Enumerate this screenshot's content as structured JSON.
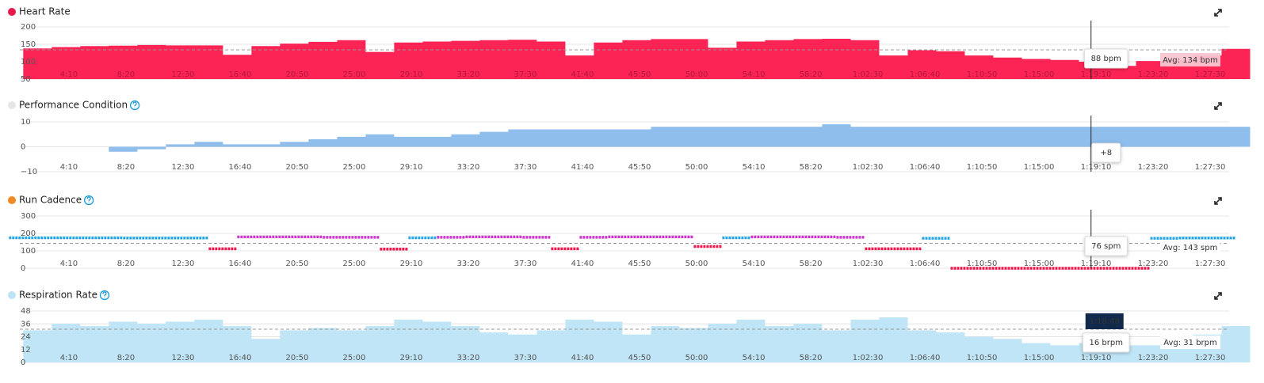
{
  "chart_data": [
    {
      "type": "area",
      "title": "Heart Rate",
      "legend_color": "#e8194e",
      "color": "#fb2454",
      "x": [
        50,
        175,
        300,
        425,
        550,
        675,
        800,
        925,
        1050,
        1175,
        1300,
        1425,
        1550,
        1675,
        1800,
        1925,
        2050,
        2175,
        2300,
        2425,
        2550,
        2675,
        2800,
        2925,
        3050,
        3175,
        3300,
        3425,
        3550,
        3675,
        3800,
        3925,
        4050,
        4175,
        4300,
        4425,
        4550,
        4675,
        4800,
        4925,
        5050,
        5175,
        5300
      ],
      "values": [
        138,
        142,
        145,
        146,
        148,
        147,
        147,
        120,
        145,
        152,
        157,
        162,
        128,
        155,
        158,
        160,
        162,
        163,
        158,
        118,
        155,
        162,
        165,
        165,
        140,
        158,
        162,
        165,
        166,
        162,
        118,
        133,
        130,
        118,
        112,
        108,
        105,
        100,
        88,
        102,
        105,
        118,
        137
      ],
      "xlim": [
        35,
        5333
      ],
      "xticks": [
        {
          "value": 250,
          "label": "4:10"
        },
        {
          "value": 500,
          "label": "8:20"
        },
        {
          "value": 750,
          "label": "12:30"
        },
        {
          "value": 1000,
          "label": "16:40"
        },
        {
          "value": 1250,
          "label": "20:50"
        },
        {
          "value": 1500,
          "label": "25:00"
        },
        {
          "value": 1750,
          "label": "29:10"
        },
        {
          "value": 2000,
          "label": "33:20"
        },
        {
          "value": 2250,
          "label": "37:30"
        },
        {
          "value": 2500,
          "label": "41:40"
        },
        {
          "value": 2750,
          "label": "45:50"
        },
        {
          "value": 3000,
          "label": "50:00"
        },
        {
          "value": 3250,
          "label": "54:10"
        },
        {
          "value": 3500,
          "label": "58:20"
        },
        {
          "value": 3750,
          "label": "1:02:30"
        },
        {
          "value": 4000,
          "label": "1:06:40"
        },
        {
          "value": 4250,
          "label": "1:10:50"
        },
        {
          "value": 4500,
          "label": "1:15:00"
        },
        {
          "value": 4750,
          "label": "1:19:10"
        },
        {
          "value": 5000,
          "label": "1:23:20"
        },
        {
          "value": 5250,
          "label": "1:27:30"
        }
      ],
      "ylim": [
        50,
        200
      ],
      "yticks": [
        50,
        100,
        150,
        200
      ],
      "avg": {
        "value": 134,
        "label": "Avg: 134 bpm"
      },
      "tooltip": {
        "value": 88,
        "label": "88 bpm"
      }
    },
    {
      "type": "area",
      "title": "Performance Condition",
      "legend_color": "#e6e6e6",
      "color": "#8fbdec",
      "x": [
        50,
        175,
        300,
        425,
        550,
        675,
        800,
        925,
        1050,
        1175,
        1300,
        1425,
        1550,
        1675,
        1800,
        1925,
        2050,
        2175,
        2300,
        2425,
        2550,
        2675,
        2800,
        2925,
        3050,
        3175,
        3300,
        3425,
        3550,
        3675,
        3800,
        3925,
        4050,
        4175,
        4300,
        4425,
        4550,
        4675,
        4800,
        4925,
        5050,
        5175,
        5300
      ],
      "values": [
        null,
        null,
        null,
        -2,
        -1,
        1,
        2,
        1,
        1,
        2,
        3,
        4,
        5,
        4,
        4,
        5,
        6,
        7,
        7,
        7,
        7,
        7,
        8,
        8,
        8,
        8,
        8,
        8,
        9,
        8,
        8,
        8,
        8,
        8,
        8,
        8,
        8,
        8,
        8,
        8,
        8,
        8,
        8
      ],
      "xlim": [
        35,
        5333
      ],
      "xticks": [
        {
          "value": 250,
          "label": "4:10"
        },
        {
          "value": 500,
          "label": "8:20"
        },
        {
          "value": 750,
          "label": "12:30"
        },
        {
          "value": 1000,
          "label": "16:40"
        },
        {
          "value": 1250,
          "label": "20:50"
        },
        {
          "value": 1500,
          "label": "25:00"
        },
        {
          "value": 1750,
          "label": "29:10"
        },
        {
          "value": 2000,
          "label": "33:20"
        },
        {
          "value": 2250,
          "label": "37:30"
        },
        {
          "value": 2500,
          "label": "41:40"
        },
        {
          "value": 2750,
          "label": "45:50"
        },
        {
          "value": 3000,
          "label": "50:00"
        },
        {
          "value": 3250,
          "label": "54:10"
        },
        {
          "value": 3500,
          "label": "58:20"
        },
        {
          "value": 3750,
          "label": "1:02:30"
        },
        {
          "value": 4000,
          "label": "1:06:40"
        },
        {
          "value": 4250,
          "label": "1:10:50"
        },
        {
          "value": 4500,
          "label": "1:15:00"
        },
        {
          "value": 4750,
          "label": "1:19:10"
        },
        {
          "value": 5000,
          "label": "1:23:20"
        },
        {
          "value": 5250,
          "label": "1:27:30"
        }
      ],
      "ylim": [
        -10,
        10
      ],
      "yticks": [
        {
          "value": -10,
          "label": "−10"
        },
        0,
        10
      ],
      "tooltip": {
        "value": 8,
        "label": "+8"
      }
    },
    {
      "type": "scatter",
      "title": "Run Cadence",
      "legend_color": "#f08a24",
      "x": [
        50,
        175,
        300,
        425,
        550,
        675,
        800,
        925,
        1050,
        1175,
        1300,
        1425,
        1550,
        1675,
        1800,
        1925,
        2050,
        2175,
        2300,
        2425,
        2550,
        2675,
        2800,
        2925,
        3050,
        3175,
        3300,
        3425,
        3550,
        3675,
        3800,
        3925,
        4050,
        4175,
        4300,
        4425,
        4550,
        4675,
        4800,
        4925,
        5050,
        5175,
        5300
      ],
      "values": [
        175,
        175,
        175,
        175,
        174,
        174,
        174,
        112,
        180,
        180,
        180,
        178,
        178,
        110,
        175,
        178,
        180,
        180,
        178,
        112,
        178,
        180,
        180,
        180,
        125,
        175,
        180,
        180,
        180,
        178,
        112,
        112,
        172,
        0,
        0,
        0,
        0,
        0,
        0,
        0,
        172,
        174,
        174
      ],
      "point_colors": [
        "#2ba6e0",
        "#2ba6e0",
        "#2ba6e0",
        "#2ba6e0",
        "#2ba6e0",
        "#2ba6e0",
        "#2ba6e0",
        "#e8194e",
        "#c839c8",
        "#c839c8",
        "#c839c8",
        "#c839c8",
        "#c839c8",
        "#e8194e",
        "#2ba6e0",
        "#c839c8",
        "#c839c8",
        "#c839c8",
        "#c839c8",
        "#e8194e",
        "#c839c8",
        "#c839c8",
        "#c839c8",
        "#c839c8",
        "#e8194e",
        "#2ba6e0",
        "#c839c8",
        "#c839c8",
        "#c839c8",
        "#c839c8",
        "#e8194e",
        "#e8194e",
        "#2ba6e0",
        "#e8194e",
        "#e8194e",
        "#e8194e",
        "#e8194e",
        "#e8194e",
        "#e8194e",
        "#e8194e",
        "#2ba6e0",
        "#2ba6e0",
        "#2ba6e0"
      ],
      "xlim": [
        35,
        5333
      ],
      "xticks": [
        {
          "value": 250,
          "label": "4:10"
        },
        {
          "value": 500,
          "label": "8:20"
        },
        {
          "value": 750,
          "label": "12:30"
        },
        {
          "value": 1000,
          "label": "16:40"
        },
        {
          "value": 1250,
          "label": "20:50"
        },
        {
          "value": 1500,
          "label": "25:00"
        },
        {
          "value": 1750,
          "label": "29:10"
        },
        {
          "value": 2000,
          "label": "33:20"
        },
        {
          "value": 2250,
          "label": "37:30"
        },
        {
          "value": 2500,
          "label": "41:40"
        },
        {
          "value": 2750,
          "label": "45:50"
        },
        {
          "value": 3000,
          "label": "50:00"
        },
        {
          "value": 3250,
          "label": "54:10"
        },
        {
          "value": 3500,
          "label": "58:20"
        },
        {
          "value": 3750,
          "label": "1:02:30"
        },
        {
          "value": 4000,
          "label": "1:06:40"
        },
        {
          "value": 4250,
          "label": "1:10:50"
        },
        {
          "value": 4500,
          "label": "1:15:00"
        },
        {
          "value": 4750,
          "label": "1:19:10"
        },
        {
          "value": 5000,
          "label": "1:23:20"
        },
        {
          "value": 5250,
          "label": "1:27:30"
        }
      ],
      "ylim": [
        0,
        300
      ],
      "yticks": [
        0,
        100,
        200,
        300
      ],
      "avg": {
        "value": 143,
        "label": "Avg: 143 spm"
      },
      "tooltip": {
        "value": 76,
        "label": "76 spm"
      }
    },
    {
      "type": "area",
      "title": "Respiration Rate",
      "legend_color": "#bde3f4",
      "color": "#bfe5f6",
      "x": [
        50,
        175,
        300,
        425,
        550,
        675,
        800,
        925,
        1050,
        1175,
        1300,
        1425,
        1550,
        1675,
        1800,
        1925,
        2050,
        2175,
        2300,
        2425,
        2550,
        2675,
        2800,
        2925,
        3050,
        3175,
        3300,
        3425,
        3550,
        3675,
        3800,
        3925,
        4050,
        4175,
        4300,
        4425,
        4550,
        4675,
        4800,
        4925,
        5050,
        5175,
        5300
      ],
      "values": [
        30,
        36,
        34,
        38,
        36,
        38,
        40,
        34,
        22,
        30,
        32,
        30,
        34,
        40,
        38,
        34,
        28,
        26,
        30,
        40,
        38,
        26,
        34,
        32,
        36,
        40,
        34,
        36,
        30,
        40,
        42,
        30,
        28,
        24,
        22,
        18,
        16,
        18,
        16,
        16,
        20,
        26,
        34
      ],
      "xlim": [
        35,
        5333
      ],
      "xticks": [
        {
          "value": 250,
          "label": "4:10"
        },
        {
          "value": 500,
          "label": "8:20"
        },
        {
          "value": 750,
          "label": "12:30"
        },
        {
          "value": 1000,
          "label": "16:40"
        },
        {
          "value": 1250,
          "label": "20:50"
        },
        {
          "value": 1500,
          "label": "25:00"
        },
        {
          "value": 1750,
          "label": "29:10"
        },
        {
          "value": 2000,
          "label": "33:20"
        },
        {
          "value": 2250,
          "label": "37:30"
        },
        {
          "value": 2500,
          "label": "41:40"
        },
        {
          "value": 2750,
          "label": "45:50"
        },
        {
          "value": 3000,
          "label": "50:00"
        },
        {
          "value": 3250,
          "label": "54:10"
        },
        {
          "value": 3500,
          "label": "58:20"
        },
        {
          "value": 3750,
          "label": "1:02:30"
        },
        {
          "value": 4000,
          "label": "1:06:40"
        },
        {
          "value": 4250,
          "label": "1:10:50"
        },
        {
          "value": 4500,
          "label": "1:15:00"
        },
        {
          "value": 4750,
          "label": "1:19:10"
        },
        {
          "value": 5000,
          "label": "1:23:20"
        },
        {
          "value": 5250,
          "label": "1:27:30"
        }
      ],
      "ylim": [
        0,
        48
      ],
      "yticks": [
        0,
        12,
        24,
        36,
        48
      ],
      "avg": {
        "value": 31,
        "label": "Avg: 31 brpm"
      },
      "tooltip": {
        "value": 16,
        "label": "16 brpm"
      },
      "cursor": {
        "value": 4728,
        "label": "1:18:48"
      }
    }
  ]
}
